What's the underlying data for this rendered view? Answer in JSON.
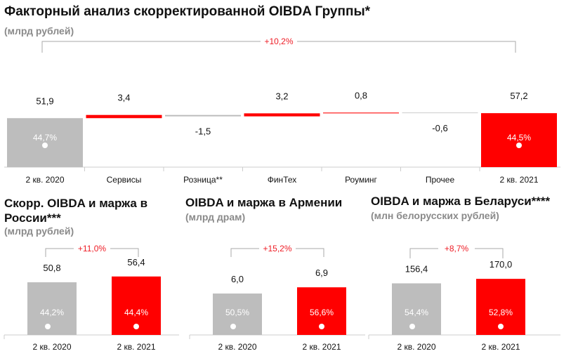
{
  "colors": {
    "red": "#ff0000",
    "gray": "#bdbdbd",
    "axis": "#cccccc",
    "bracket": "#aaaaaa",
    "delta": "#ee1c25"
  },
  "main": {
    "title": "Факторный анализ скорректированной OIBDA Группы*",
    "subtitle": "(млрд рублей)"
  },
  "russia": {
    "title": "Скорр. OIBDA и маржа в России***",
    "subtitle": "(млрд рублей)"
  },
  "armenia": {
    "title": "OIBDA и маржа в Армении",
    "subtitle": "(млрд драм)"
  },
  "belarus": {
    "title": "OIBDA и маржа в Беларуси****",
    "subtitle": "(млн белорусских рублей)"
  },
  "chart_data": [
    {
      "type": "bar",
      "subtype": "waterfall",
      "categories": [
        "2 кв. 2020",
        "Сервисы",
        "Розница**",
        "ФинТех",
        "Роуминг",
        "Прочее",
        "2 кв. 2021"
      ],
      "values": [
        51.9,
        3.4,
        -1.5,
        3.2,
        0.8,
        -0.6,
        57.2
      ],
      "value_labels": [
        "51,9",
        "3,4",
        "-1,5",
        "3,2",
        "0,8",
        "-0,6",
        "57,2"
      ],
      "kinds": [
        "total",
        "delta",
        "delta",
        "delta",
        "delta",
        "delta",
        "total"
      ],
      "colors": [
        "gray",
        "red",
        "gray",
        "red",
        "red",
        "gray",
        "red"
      ],
      "margins": [
        "44,7%",
        "",
        "",
        "",
        "",
        "",
        "44,5%"
      ],
      "growth": "+10,2%"
    },
    {
      "type": "bar",
      "categories": [
        "2 кв. 2020",
        "2 кв. 2021"
      ],
      "values": [
        50.8,
        56.4
      ],
      "value_labels": [
        "50,8",
        "56,4"
      ],
      "margins": [
        "44,2%",
        "44,4%"
      ],
      "growth": "+11,0%"
    },
    {
      "type": "bar",
      "categories": [
        "2 кв. 2020",
        "2 кв. 2021"
      ],
      "values": [
        6.0,
        6.9
      ],
      "value_labels": [
        "6,0",
        "6,9"
      ],
      "margins": [
        "50,5%",
        "56,6%"
      ],
      "growth": "+15,2%"
    },
    {
      "type": "bar",
      "categories": [
        "2 кв. 2020",
        "2 кв. 2021"
      ],
      "values": [
        156.4,
        170.0
      ],
      "value_labels": [
        "156,4",
        "170,0"
      ],
      "margins": [
        "54,4%",
        "52,8%"
      ],
      "growth": "+8,7%"
    }
  ]
}
